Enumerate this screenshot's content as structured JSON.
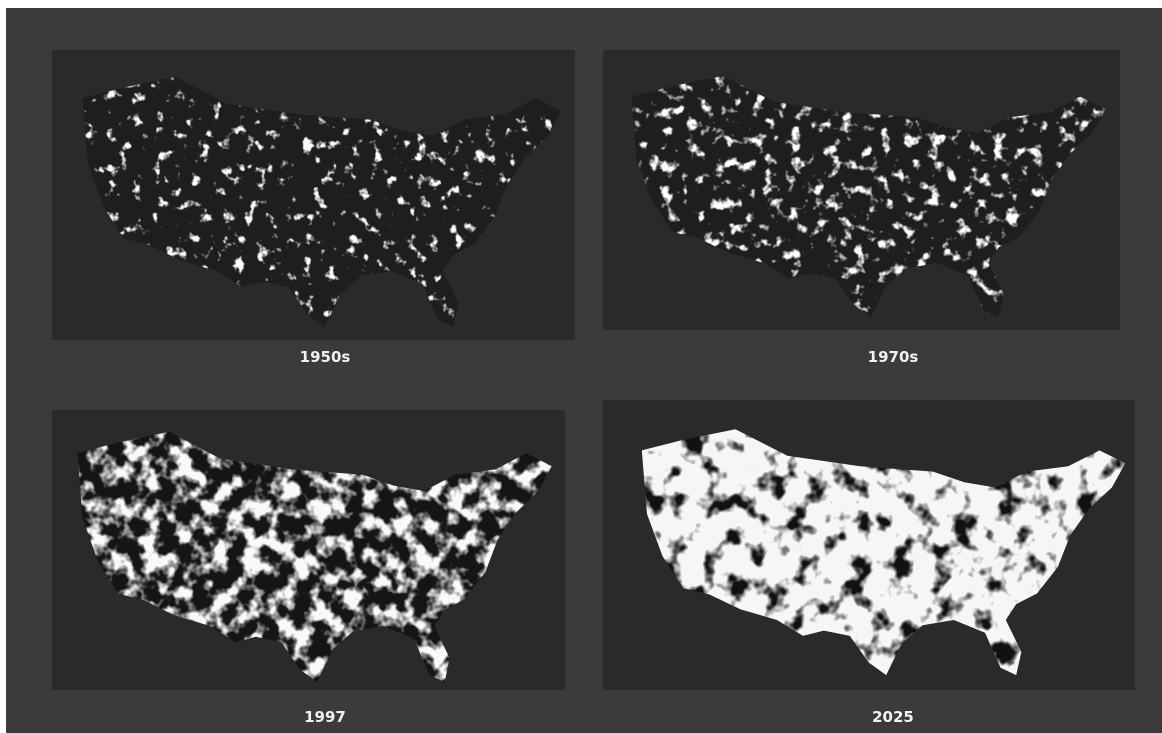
{
  "panels": [
    {
      "label": "1950s"
    },
    {
      "label": "1970s"
    },
    {
      "label": "1997"
    },
    {
      "label": "2025"
    }
  ]
}
